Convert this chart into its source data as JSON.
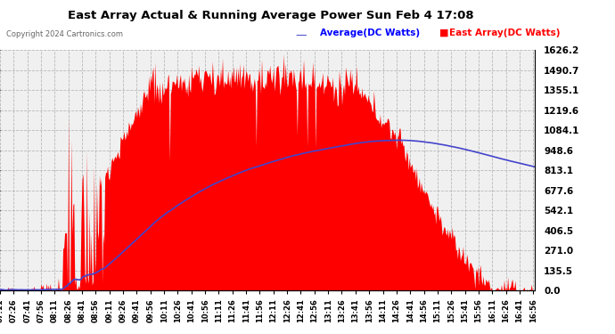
{
  "title": "East Array Actual & Running Average Power Sun Feb 4 17:08",
  "copyright": "Copyright 2024 Cartronics.com",
  "legend_avg": "Average(DC Watts)",
  "legend_east": "East Array(DC Watts)",
  "yticks": [
    0.0,
    135.5,
    271.0,
    406.5,
    542.1,
    677.6,
    813.1,
    948.6,
    1084.1,
    1219.6,
    1355.1,
    1490.7,
    1626.2
  ],
  "ymax": 1626.2,
  "bar_color": "#ff0000",
  "line_color": "#4444cc",
  "avg_label_color": "#0000ff",
  "east_label_color": "#ff0000",
  "plot_bg": "#f0f0f0",
  "fig_bg": "#ffffff",
  "grid_color": "#aaaaaa",
  "title_color": "#000000",
  "copyright_color": "#666666"
}
